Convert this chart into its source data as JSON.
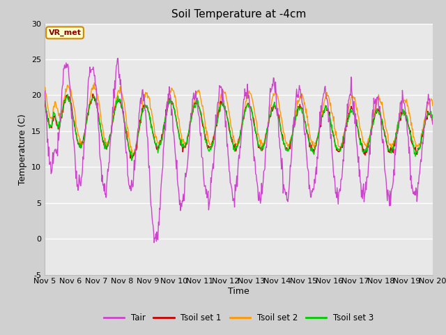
{
  "title": "Soil Temperature at -4cm",
  "xlabel": "Time",
  "ylabel": "Temperature (C)",
  "ylim": [
    -5,
    30
  ],
  "series_colors": {
    "Tair": "#cc44cc",
    "Tsoil_set1": "#cc0000",
    "Tsoil_set2": "#ff9900",
    "Tsoil_set3": "#00cc00"
  },
  "legend_labels": [
    "Tair",
    "Tsoil set 1",
    "Tsoil set 2",
    "Tsoil set 3"
  ],
  "annotation_text": "VR_met",
  "annotation_box_color": "#ffffcc",
  "annotation_border_color": "#cc8800",
  "yticks": [
    -5,
    0,
    5,
    10,
    15,
    20,
    25,
    30
  ],
  "xtick_labels": [
    "Nov 5",
    "Nov 6",
    "Nov 7",
    "Nov 8",
    "Nov 9",
    "Nov 10",
    "Nov 11",
    "Nov 12",
    "Nov 13",
    "Nov 14",
    "Nov 15",
    "Nov 16",
    "Nov 17",
    "Nov 18",
    "Nov 19",
    "Nov 20"
  ],
  "n_days": 15,
  "fig_bg": "#d0d0d0",
  "plot_bg": "#e8e8e8"
}
